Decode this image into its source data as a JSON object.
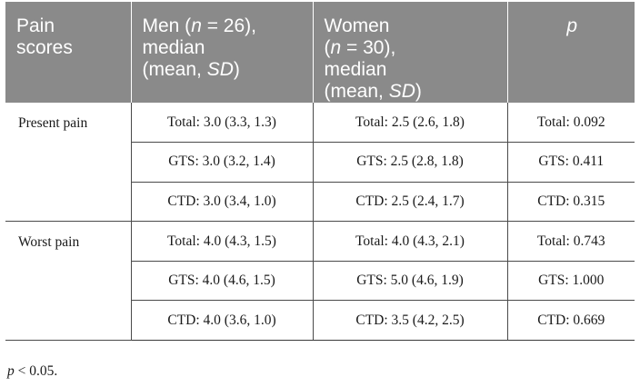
{
  "header": {
    "col1": [
      "Pain",
      "scores"
    ],
    "col2": [
      "Men (",
      "n",
      " = 26),",
      "median",
      "(mean, ",
      "SD",
      ")"
    ],
    "col3": [
      "Women",
      "(",
      "n",
      " = 30),",
      "median",
      "(mean, ",
      "SD",
      ")"
    ],
    "col4": "p"
  },
  "groups": [
    {
      "label": "Present pain",
      "rows": [
        {
          "men": "Total: 3.0 (3.3, 1.3)",
          "women": "Total: 2.5 (2.6, 1.8)",
          "p": "Total: 0.092"
        },
        {
          "men": "GTS: 3.0 (3.2, 1.4)",
          "women": "GTS: 2.5 (2.8, 1.8)",
          "p": "GTS: 0.411"
        },
        {
          "men": "CTD: 3.0 (3.4, 1.0)",
          "women": "CTD: 2.5 (2.4, 1.7)",
          "p": "CTD: 0.315"
        }
      ]
    },
    {
      "label": "Worst pain",
      "rows": [
        {
          "men": "Total: 4.0 (4.3, 1.5)",
          "women": "Total: 4.0 (4.3, 2.1)",
          "p": "Total: 0.743"
        },
        {
          "men": "GTS: 4.0 (4.6, 1.5)",
          "women": "GTS: 5.0 (4.6, 1.9)",
          "p": "GTS: 1.000"
        },
        {
          "men": "CTD: 4.0 (3.6, 1.0)",
          "women": "CTD: 3.5 (4.2, 2.5)",
          "p": "CTD: 0.669"
        }
      ]
    }
  ],
  "footnote": {
    "symbol": "p",
    "text": " < 0.05."
  }
}
